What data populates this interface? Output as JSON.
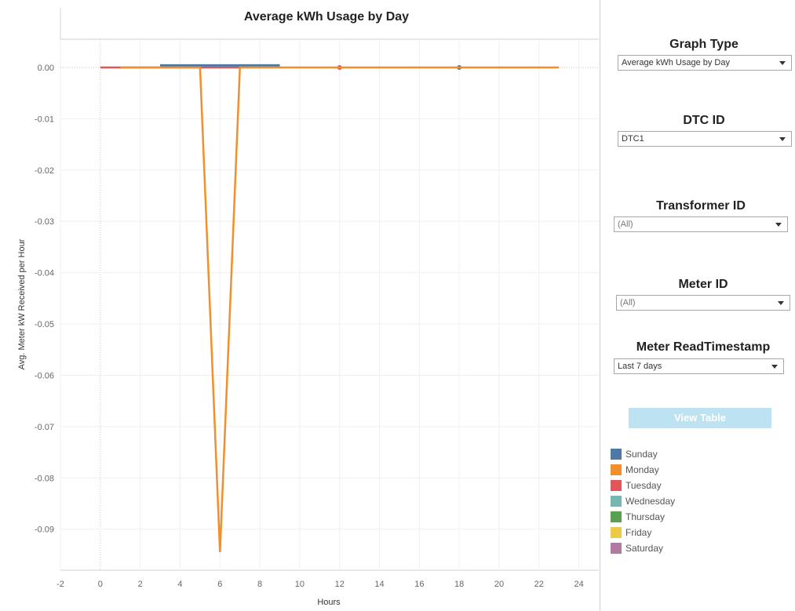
{
  "chart_data": {
    "type": "line",
    "title": "Average kWh Usage by Day",
    "xlabel": "Hours",
    "ylabel": "Avg. Meter kW Received per Hour",
    "xlim": [
      -2,
      25
    ],
    "ylim": [
      -0.098,
      0.0055
    ],
    "xticks": [
      -2,
      0,
      2,
      4,
      6,
      8,
      10,
      12,
      14,
      16,
      18,
      20,
      22,
      24
    ],
    "yticks": [
      0.0,
      -0.01,
      -0.02,
      -0.03,
      -0.04,
      -0.05,
      -0.06,
      -0.07,
      -0.08,
      -0.09
    ],
    "ytick_labels": [
      "0.00",
      "-0.01",
      "-0.02",
      "-0.03",
      "-0.04",
      "-0.05",
      "-0.06",
      "-0.07",
      "-0.08",
      "-0.09"
    ],
    "grid": true,
    "series": [
      {
        "name": "Tuesday",
        "color": "#e15759",
        "x": [
          0,
          1,
          2,
          3,
          4,
          5,
          6,
          7,
          12
        ],
        "y": [
          0,
          0,
          0,
          0,
          0,
          0,
          0,
          0,
          0
        ]
      },
      {
        "name": "Sunday",
        "color": "#4e79a7",
        "x": [
          3,
          4,
          5,
          6,
          7,
          8,
          9,
          18
        ],
        "y": [
          0.0004,
          0.0004,
          0.0004,
          0.0004,
          0.0004,
          0.0004,
          0.0004,
          0
        ]
      },
      {
        "name": "Monday",
        "color": "#f28e2b",
        "x": [
          1,
          2,
          3,
          4,
          5,
          6,
          7,
          8,
          9,
          10,
          11,
          12,
          13,
          14,
          15,
          16,
          17,
          18,
          19,
          20,
          21,
          22,
          23
        ],
        "y": [
          0,
          0,
          0,
          0,
          0,
          -0.0945,
          0,
          0,
          0,
          0,
          0,
          0,
          0,
          0,
          0,
          0,
          0,
          0,
          0,
          0,
          0,
          0,
          0
        ]
      }
    ]
  },
  "filters": {
    "graph_type": {
      "title": "Graph Type",
      "value": "Average kWh Usage by Day"
    },
    "dtc_id": {
      "title": "DTC ID",
      "value": "DTC1"
    },
    "transformer_id": {
      "title": "Transformer ID",
      "value": "(All)"
    },
    "meter_id": {
      "title": "Meter ID",
      "value": "(All)"
    },
    "meter_read_timestamp": {
      "title": "Meter ReadTimestamp",
      "value": "Last 7 days"
    }
  },
  "view_table_label": "View Table",
  "legend": [
    {
      "label": "Sunday",
      "color": "#4e79a7"
    },
    {
      "label": "Monday",
      "color": "#f28e2b"
    },
    {
      "label": "Tuesday",
      "color": "#e15759"
    },
    {
      "label": "Wednesday",
      "color": "#76b7b2"
    },
    {
      "label": "Thursday",
      "color": "#59a14f"
    },
    {
      "label": "Friday",
      "color": "#edc948"
    },
    {
      "label": "Saturday",
      "color": "#b07aa1"
    }
  ]
}
